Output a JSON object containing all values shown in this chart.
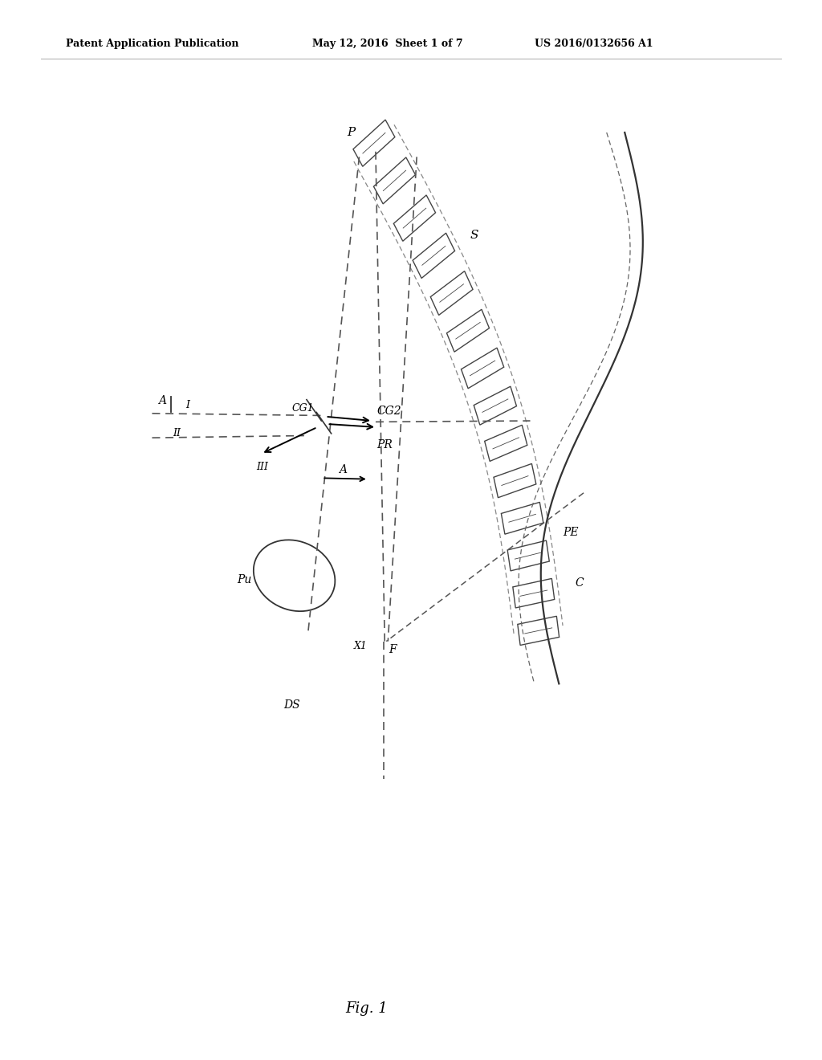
{
  "bg_color": "#ffffff",
  "header_left": "Patent Application Publication",
  "header_mid": "May 12, 2016  Sheet 1 of 7",
  "header_right": "US 2016/0132656 A1",
  "footer": "Fig. 1",
  "label_P": "P",
  "label_S": "S",
  "label_CG1": "CG1",
  "label_CG2": "CG2",
  "label_PR": "PR",
  "label_A_arrow": "A",
  "label_A_left": "A",
  "label_I": "I",
  "label_II": "II",
  "label_III": "III",
  "label_Pu": "Pu",
  "label_X1": "X1",
  "label_F": "F",
  "label_DS": "DS",
  "label_PE": "PE",
  "label_C": "C"
}
